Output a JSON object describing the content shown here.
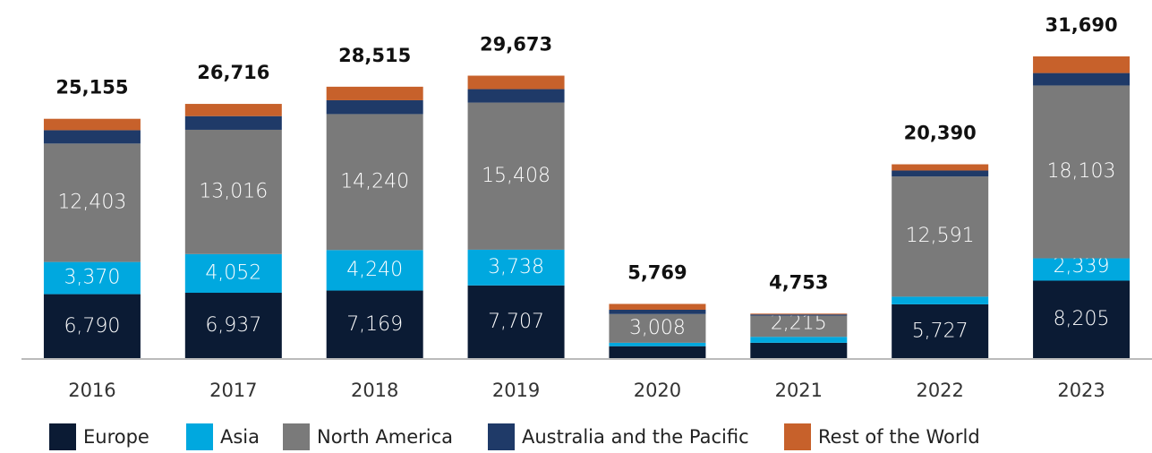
{
  "chart_data": {
    "type": "stacked_bar",
    "categories": [
      "2016",
      "2017",
      "2018",
      "2019",
      "2020",
      "2021",
      "2022",
      "2023"
    ],
    "series": [
      {
        "name": "Europe",
        "color": "#0b1b34",
        "values": [
          6790,
          6937,
          7169,
          7707,
          1340,
          1700,
          5727,
          8205
        ],
        "value_labels": [
          "6,790",
          "6,937",
          "7,169",
          "7,707",
          null,
          null,
          "5,727",
          "8,205"
        ]
      },
      {
        "name": "Asia",
        "color": "#00a8df",
        "values": [
          3370,
          4052,
          4240,
          3738,
          360,
          620,
          800,
          2339
        ],
        "value_labels": [
          "3,370",
          "4,052",
          "4,240",
          "3,738",
          null,
          null,
          null,
          "2,339"
        ]
      },
      {
        "name": "North America",
        "color": "#7a7a7a",
        "values": [
          12403,
          13016,
          14240,
          15408,
          3008,
          2215,
          12591,
          18103
        ],
        "value_labels": [
          "12,403",
          "13,016",
          "14,240",
          "15,408",
          "3,008",
          "2,215",
          "12,591",
          "18,103"
        ]
      },
      {
        "name": "Australia and the Pacific",
        "color": "#1f3a68",
        "values": [
          1400,
          1430,
          1450,
          1410,
          450,
          130,
          620,
          1300
        ],
        "value_labels": [
          null,
          null,
          null,
          null,
          null,
          null,
          null,
          null
        ]
      },
      {
        "name": "Rest of the World",
        "color": "#c7612b",
        "values": [
          1192,
          1281,
          1416,
          1410,
          611,
          88,
          652,
          1743
        ],
        "value_labels": [
          null,
          null,
          null,
          null,
          null,
          null,
          null,
          null
        ]
      }
    ],
    "totals": [
      25155,
      26716,
      28515,
      29673,
      5769,
      4753,
      20390,
      31690
    ],
    "total_labels": [
      "25,155",
      "26,716",
      "28,515",
      "29,673",
      "5,769",
      "4,753",
      "20,390",
      "31,690"
    ]
  }
}
